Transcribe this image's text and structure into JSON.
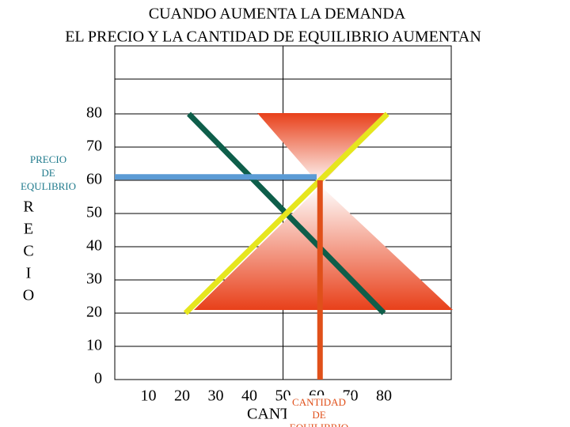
{
  "chart_data": {
    "type": "line",
    "title": [
      "CUANDO AUMENTA LA DEMANDA",
      "EL PRECIO Y LA CANTIDAD DE EQUILIBRIO AUMENTAN"
    ],
    "xlim": [
      0,
      100
    ],
    "ylim": [
      0,
      100
    ],
    "xticks": [
      10,
      20,
      30,
      40,
      50,
      60,
      70,
      80
    ],
    "yticks": [
      0,
      10,
      20,
      30,
      40,
      50,
      60,
      70,
      80
    ],
    "grid": true,
    "series": [
      {
        "color": "#0e5e4a",
        "x": [
          22,
          80
        ],
        "values": [
          80,
          20
        ]
      },
      {
        "color": "#e6e61e",
        "x": [
          21,
          81
        ],
        "values": [
          20,
          80
        ]
      },
      {
        "color": "#5b9bd5",
        "x": [
          0,
          60
        ],
        "values": [
          61,
          61
        ]
      },
      {
        "color": "#e0501a",
        "x": [
          61,
          61
        ],
        "values": [
          60,
          0
        ]
      }
    ],
    "price_label": [
      "PRECIO",
      "DE",
      "EQULIBRIO"
    ],
    "y_label_letters": [
      "R",
      "E",
      "C",
      "I",
      "O"
    ],
    "x_label": "CANTIDAD",
    "quantity_label": [
      "CANTIDAD",
      "DE",
      "EQUILIBRIO"
    ]
  }
}
